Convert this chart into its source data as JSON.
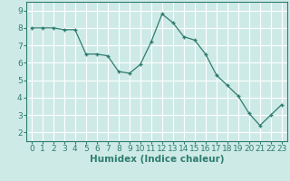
{
  "x": [
    0,
    1,
    2,
    3,
    4,
    5,
    6,
    7,
    8,
    9,
    10,
    11,
    12,
    13,
    14,
    15,
    16,
    17,
    18,
    19,
    20,
    21,
    22,
    23
  ],
  "y": [
    8.0,
    8.0,
    8.0,
    7.9,
    7.9,
    6.5,
    6.5,
    6.4,
    5.5,
    5.4,
    5.9,
    7.2,
    8.8,
    8.3,
    7.5,
    7.3,
    6.5,
    5.3,
    4.7,
    4.1,
    3.1,
    2.4,
    3.0,
    3.6
  ],
  "line_color": "#2e7d6e",
  "marker_color": "#2e7d6e",
  "bg_color": "#ceeae7",
  "grid_color": "#ffffff",
  "xlabel": "Humidex (Indice chaleur)",
  "xlim": [
    -0.5,
    23.5
  ],
  "ylim": [
    1.5,
    9.5
  ],
  "yticks": [
    2,
    3,
    4,
    5,
    6,
    7,
    8,
    9
  ],
  "xticks": [
    0,
    1,
    2,
    3,
    4,
    5,
    6,
    7,
    8,
    9,
    10,
    11,
    12,
    13,
    14,
    15,
    16,
    17,
    18,
    19,
    20,
    21,
    22,
    23
  ],
  "tick_fontsize": 6.5,
  "xlabel_fontsize": 7.5
}
